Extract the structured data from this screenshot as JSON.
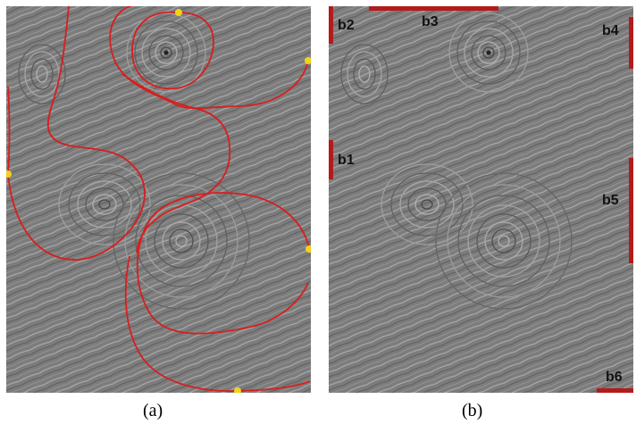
{
  "figure": {
    "panels": [
      {
        "id": "a",
        "caption": "(a)"
      },
      {
        "id": "b",
        "caption": "(b)"
      }
    ],
    "boundary_segments": [
      {
        "label": "b1"
      },
      {
        "label": "b2"
      },
      {
        "label": "b3"
      },
      {
        "label": "b4"
      },
      {
        "label": "b5"
      },
      {
        "label": "b6"
      }
    ]
  },
  "colors": {
    "separatrix": "#d81e1e",
    "boundary_point": "#f2d21a",
    "boundary_segment": "#b31b1b",
    "flow_background": "#7a7a7a"
  }
}
